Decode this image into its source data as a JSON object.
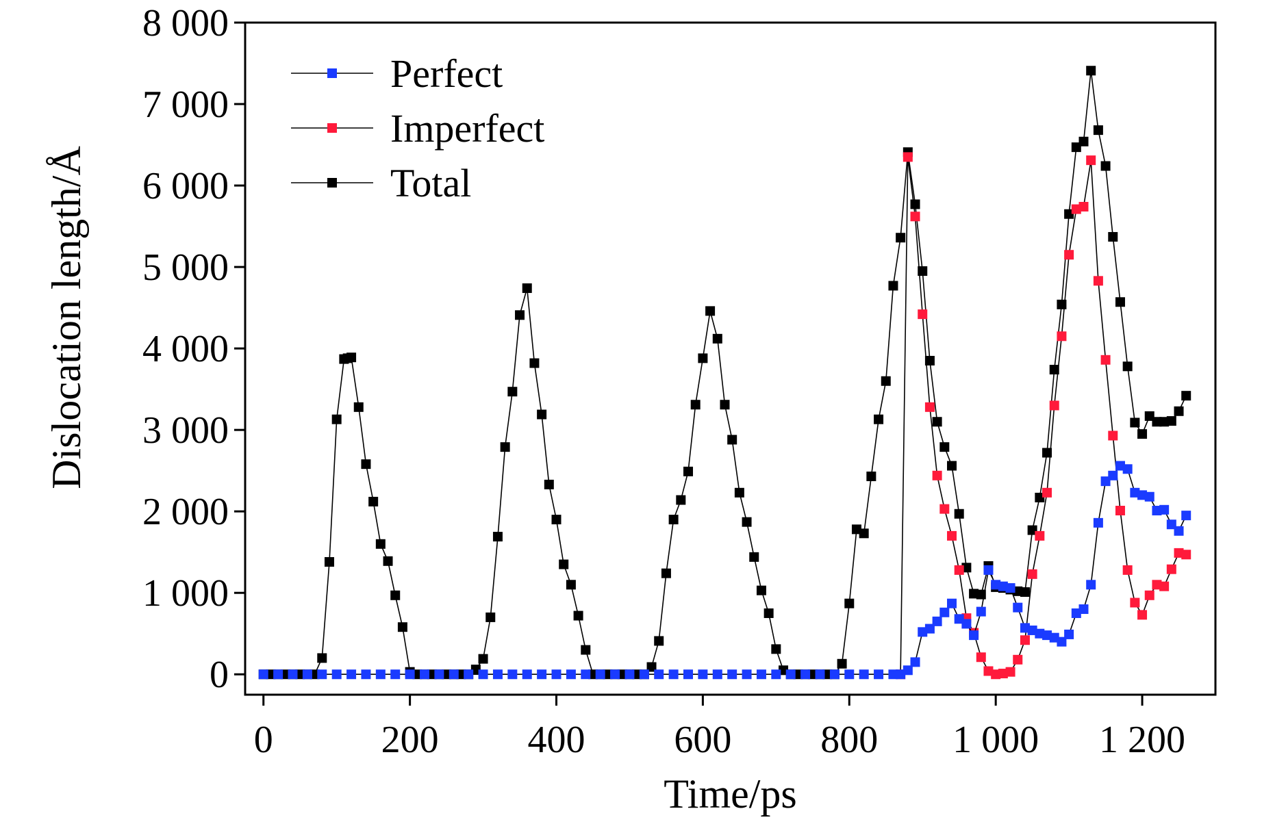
{
  "chart_data": {
    "type": "line",
    "xlabel": "Time/ps",
    "ylabel": "Dislocation length/Å",
    "xlim": [
      -25,
      1300
    ],
    "ylim": [
      -250,
      8000
    ],
    "x_ticks": [
      0,
      200,
      400,
      600,
      800,
      1000,
      1200
    ],
    "x_tick_labels": [
      "0",
      "200",
      "400",
      "600",
      "800",
      "1 000",
      "1 200"
    ],
    "y_ticks": [
      0,
      1000,
      2000,
      3000,
      4000,
      5000,
      6000,
      7000,
      8000
    ],
    "y_tick_labels": [
      "0",
      "1 000",
      "2 000",
      "3 000",
      "4 000",
      "5 000",
      "6 000",
      "7 000",
      "8 000"
    ],
    "legend_position": "top-left",
    "grid": false,
    "series": [
      {
        "name": "Perfect",
        "color": "#1a3bff",
        "points": [
          [
            0,
            0
          ],
          [
            20,
            0
          ],
          [
            40,
            0
          ],
          [
            60,
            0
          ],
          [
            80,
            0
          ],
          [
            100,
            0
          ],
          [
            120,
            0
          ],
          [
            140,
            0
          ],
          [
            160,
            0
          ],
          [
            180,
            0
          ],
          [
            200,
            0
          ],
          [
            220,
            0
          ],
          [
            240,
            0
          ],
          [
            260,
            0
          ],
          [
            280,
            0
          ],
          [
            300,
            0
          ],
          [
            320,
            0
          ],
          [
            340,
            0
          ],
          [
            360,
            0
          ],
          [
            380,
            0
          ],
          [
            400,
            0
          ],
          [
            420,
            0
          ],
          [
            440,
            0
          ],
          [
            460,
            0
          ],
          [
            480,
            0
          ],
          [
            500,
            0
          ],
          [
            520,
            0
          ],
          [
            540,
            0
          ],
          [
            560,
            0
          ],
          [
            580,
            0
          ],
          [
            600,
            0
          ],
          [
            620,
            0
          ],
          [
            640,
            0
          ],
          [
            660,
            0
          ],
          [
            680,
            0
          ],
          [
            700,
            0
          ],
          [
            720,
            0
          ],
          [
            740,
            0
          ],
          [
            760,
            0
          ],
          [
            780,
            0
          ],
          [
            800,
            0
          ],
          [
            820,
            0
          ],
          [
            840,
            0
          ],
          [
            860,
            0
          ],
          [
            870,
            0
          ],
          [
            880,
            50
          ],
          [
            890,
            150
          ],
          [
            900,
            520
          ],
          [
            910,
            560
          ],
          [
            920,
            650
          ],
          [
            930,
            760
          ],
          [
            940,
            870
          ],
          [
            950,
            680
          ],
          [
            960,
            620
          ],
          [
            970,
            480
          ],
          [
            980,
            770
          ],
          [
            990,
            1280
          ],
          [
            1000,
            1100
          ],
          [
            1010,
            1080
          ],
          [
            1020,
            1060
          ],
          [
            1030,
            820
          ],
          [
            1040,
            570
          ],
          [
            1050,
            540
          ],
          [
            1060,
            500
          ],
          [
            1070,
            480
          ],
          [
            1080,
            450
          ],
          [
            1090,
            400
          ],
          [
            1100,
            490
          ],
          [
            1110,
            750
          ],
          [
            1120,
            800
          ],
          [
            1130,
            1100
          ],
          [
            1140,
            1860
          ],
          [
            1150,
            2370
          ],
          [
            1160,
            2440
          ],
          [
            1170,
            2560
          ],
          [
            1180,
            2520
          ],
          [
            1190,
            2230
          ],
          [
            1200,
            2200
          ],
          [
            1210,
            2180
          ],
          [
            1220,
            2010
          ],
          [
            1230,
            2020
          ],
          [
            1240,
            1840
          ],
          [
            1250,
            1760
          ],
          [
            1260,
            1950
          ]
        ]
      },
      {
        "name": "Imperfect",
        "color": "#ff1a3b",
        "points": [
          [
            870,
            0
          ],
          [
            880,
            6350
          ],
          [
            890,
            5620
          ],
          [
            900,
            4420
          ],
          [
            910,
            3280
          ],
          [
            920,
            2440
          ],
          [
            930,
            2030
          ],
          [
            940,
            1700
          ],
          [
            950,
            1280
          ],
          [
            960,
            690
          ],
          [
            970,
            510
          ],
          [
            980,
            210
          ],
          [
            990,
            40
          ],
          [
            1000,
            0
          ],
          [
            1010,
            10
          ],
          [
            1020,
            30
          ],
          [
            1030,
            180
          ],
          [
            1040,
            420
          ],
          [
            1050,
            1230
          ],
          [
            1060,
            1700
          ],
          [
            1070,
            2230
          ],
          [
            1080,
            3300
          ],
          [
            1090,
            4150
          ],
          [
            1100,
            5150
          ],
          [
            1110,
            5710
          ],
          [
            1120,
            5740
          ],
          [
            1130,
            6310
          ],
          [
            1140,
            4830
          ],
          [
            1150,
            3860
          ],
          [
            1160,
            2930
          ],
          [
            1170,
            2010
          ],
          [
            1180,
            1280
          ],
          [
            1190,
            880
          ],
          [
            1200,
            730
          ],
          [
            1210,
            970
          ],
          [
            1220,
            1100
          ],
          [
            1230,
            1080
          ],
          [
            1240,
            1290
          ],
          [
            1250,
            1490
          ],
          [
            1260,
            1470
          ]
        ]
      },
      {
        "name": "Total",
        "color": "#000000",
        "points": [
          [
            0,
            0
          ],
          [
            10,
            0
          ],
          [
            20,
            0
          ],
          [
            30,
            0
          ],
          [
            40,
            0
          ],
          [
            50,
            0
          ],
          [
            60,
            0
          ],
          [
            70,
            0
          ],
          [
            80,
            200
          ],
          [
            90,
            1380
          ],
          [
            100,
            3130
          ],
          [
            110,
            3870
          ],
          [
            115,
            3880
          ],
          [
            120,
            3890
          ],
          [
            130,
            3280
          ],
          [
            140,
            2580
          ],
          [
            150,
            2120
          ],
          [
            160,
            1600
          ],
          [
            170,
            1390
          ],
          [
            180,
            970
          ],
          [
            190,
            580
          ],
          [
            200,
            30
          ],
          [
            210,
            0
          ],
          [
            220,
            0
          ],
          [
            230,
            0
          ],
          [
            240,
            0
          ],
          [
            250,
            0
          ],
          [
            260,
            0
          ],
          [
            270,
            0
          ],
          [
            280,
            0
          ],
          [
            290,
            60
          ],
          [
            300,
            190
          ],
          [
            310,
            700
          ],
          [
            320,
            1690
          ],
          [
            330,
            2790
          ],
          [
            340,
            3470
          ],
          [
            350,
            4410
          ],
          [
            360,
            4740
          ],
          [
            370,
            3820
          ],
          [
            380,
            3190
          ],
          [
            390,
            2330
          ],
          [
            400,
            1900
          ],
          [
            410,
            1350
          ],
          [
            420,
            1100
          ],
          [
            430,
            720
          ],
          [
            440,
            300
          ],
          [
            450,
            0
          ],
          [
            460,
            0
          ],
          [
            470,
            0
          ],
          [
            480,
            0
          ],
          [
            490,
            0
          ],
          [
            500,
            0
          ],
          [
            510,
            0
          ],
          [
            520,
            0
          ],
          [
            530,
            90
          ],
          [
            540,
            410
          ],
          [
            550,
            1240
          ],
          [
            560,
            1900
          ],
          [
            570,
            2140
          ],
          [
            580,
            2490
          ],
          [
            590,
            3310
          ],
          [
            600,
            3880
          ],
          [
            610,
            4460
          ],
          [
            620,
            4120
          ],
          [
            630,
            3310
          ],
          [
            640,
            2880
          ],
          [
            650,
            2230
          ],
          [
            660,
            1870
          ],
          [
            670,
            1440
          ],
          [
            680,
            1030
          ],
          [
            690,
            750
          ],
          [
            700,
            310
          ],
          [
            710,
            50
          ],
          [
            720,
            0
          ],
          [
            730,
            0
          ],
          [
            740,
            0
          ],
          [
            750,
            0
          ],
          [
            760,
            0
          ],
          [
            770,
            0
          ],
          [
            780,
            0
          ],
          [
            790,
            130
          ],
          [
            800,
            870
          ],
          [
            810,
            1780
          ],
          [
            820,
            1730
          ],
          [
            830,
            2430
          ],
          [
            840,
            3130
          ],
          [
            850,
            3600
          ],
          [
            860,
            4770
          ],
          [
            870,
            5360
          ],
          [
            880,
            6410
          ],
          [
            890,
            5770
          ],
          [
            900,
            4950
          ],
          [
            910,
            3850
          ],
          [
            920,
            3100
          ],
          [
            930,
            2790
          ],
          [
            940,
            2560
          ],
          [
            950,
            1970
          ],
          [
            960,
            1310
          ],
          [
            970,
            990
          ],
          [
            980,
            980
          ],
          [
            990,
            1330
          ],
          [
            1000,
            1070
          ],
          [
            1010,
            1060
          ],
          [
            1020,
            1040
          ],
          [
            1030,
            1020
          ],
          [
            1040,
            1010
          ],
          [
            1050,
            1770
          ],
          [
            1060,
            2170
          ],
          [
            1070,
            2720
          ],
          [
            1080,
            3740
          ],
          [
            1090,
            4540
          ],
          [
            1100,
            5650
          ],
          [
            1110,
            6470
          ],
          [
            1120,
            6540
          ],
          [
            1130,
            7410
          ],
          [
            1140,
            6680
          ],
          [
            1150,
            6240
          ],
          [
            1160,
            5370
          ],
          [
            1170,
            4570
          ],
          [
            1180,
            3780
          ],
          [
            1190,
            3090
          ],
          [
            1200,
            2950
          ],
          [
            1210,
            3170
          ],
          [
            1220,
            3100
          ],
          [
            1230,
            3100
          ],
          [
            1240,
            3110
          ],
          [
            1250,
            3230
          ],
          [
            1260,
            3420
          ]
        ]
      }
    ]
  }
}
